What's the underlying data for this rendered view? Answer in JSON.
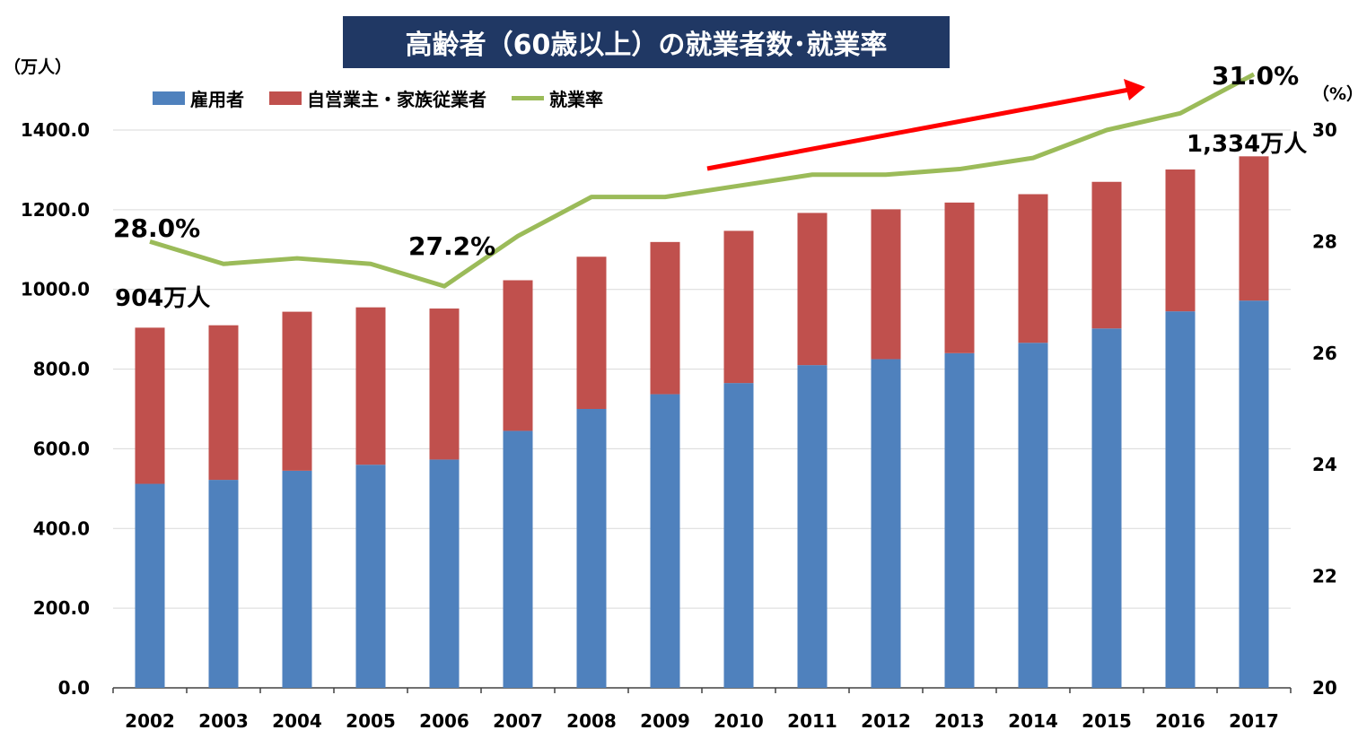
{
  "title": "高齢者（60歳以上）の就業者数･就業率",
  "left_unit": "（万人）",
  "right_unit": "（%）",
  "legend": {
    "employees": "雇用者",
    "self_employed": "自営業主・家族従業者",
    "rate": "就業率"
  },
  "annotations": {
    "rate_2002": "28.0%",
    "rate_2006": "27.2%",
    "rate_2017": "31.0%",
    "total_2002": "904万人",
    "total_2017": "1,334万人"
  },
  "colors": {
    "employees": "#4f81bd",
    "self_employed": "#c0504d",
    "rate": "#9bbb59",
    "arrow": "#ff0000",
    "title_bg": "#203864"
  },
  "chart_data": {
    "type": "bar",
    "stacked": true,
    "categories": [
      "2002",
      "2003",
      "2004",
      "2005",
      "2006",
      "2007",
      "2008",
      "2009",
      "2010",
      "2011",
      "2012",
      "2013",
      "2014",
      "2015",
      "2016",
      "2017"
    ],
    "series": [
      {
        "name": "雇用者",
        "axis": "left",
        "values": [
          512,
          522,
          545,
          560,
          573,
          645,
          700,
          737,
          765,
          810,
          825,
          840,
          866,
          902,
          945,
          972
        ]
      },
      {
        "name": "自営業主・家族従業者",
        "axis": "left",
        "values": [
          392,
          388,
          399,
          395,
          379,
          378,
          382,
          382,
          382,
          382,
          376,
          378,
          373,
          368,
          356,
          362
        ]
      },
      {
        "name": "就業率",
        "type": "line",
        "axis": "right",
        "values": [
          28.0,
          27.6,
          27.7,
          27.6,
          27.2,
          28.1,
          28.8,
          28.8,
          29.0,
          29.2,
          29.2,
          29.3,
          29.5,
          30.0,
          30.3,
          31.0
        ]
      }
    ],
    "y_left": {
      "min": 0,
      "max": 1400,
      "ticks": [
        "0.0",
        "200.0",
        "400.0",
        "600.0",
        "800.0",
        "1000.0",
        "1200.0",
        "1400.0"
      ]
    },
    "y_right": {
      "min": 20,
      "max": 30,
      "ticks": [
        "20",
        "22",
        "24",
        "26",
        "28",
        "30"
      ]
    },
    "grid": true,
    "legend_position": "top-left"
  }
}
